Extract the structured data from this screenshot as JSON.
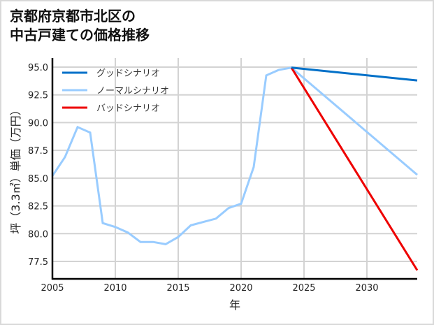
{
  "title": "京都府京都市北区の\n中古戸建ての価格推移",
  "chart_data": {
    "type": "line",
    "title": "京都府京都市北区の中古戸建ての価格推移",
    "xlabel": "年",
    "ylabel": "坪（3.3㎡）単価（万円）",
    "xlim": [
      2005,
      2034
    ],
    "ylim": [
      75.9,
      95.8
    ],
    "x_ticks": [
      2005,
      2010,
      2015,
      2020,
      2025,
      2030
    ],
    "x_tick_labels": [
      "2005",
      "2010",
      "2015",
      "2020",
      "2025",
      "2030"
    ],
    "y_ticks": [
      77.5,
      80.0,
      82.5,
      85.0,
      87.5,
      90.0,
      92.5,
      95.0
    ],
    "y_tick_labels": [
      "77.5",
      "80.0",
      "82.5",
      "85.0",
      "87.5",
      "90.0",
      "92.5",
      "95.0"
    ],
    "grid": true,
    "legend_position": "upper left",
    "series": [
      {
        "name": "グッドシナリオ",
        "color": "#0070c8",
        "x": [
          2024,
          2034
        ],
        "values": [
          94.95,
          93.8
        ]
      },
      {
        "name": "ノーマルシナリオ",
        "color": "#99ccff",
        "x": [
          2005,
          2006,
          2007,
          2008,
          2009,
          2010,
          2011,
          2012,
          2013,
          2014,
          2015,
          2016,
          2017,
          2018,
          2019,
          2020,
          2021,
          2022,
          2023,
          2024,
          2034
        ],
        "values": [
          85.2,
          86.9,
          89.6,
          89.1,
          80.95,
          80.6,
          80.1,
          79.25,
          79.25,
          79.05,
          79.7,
          80.75,
          81.05,
          81.35,
          82.3,
          82.7,
          86.0,
          94.25,
          94.75,
          94.95,
          85.3
        ]
      },
      {
        "name": "バッドシナリオ",
        "color": "#ee0000",
        "x": [
          2024,
          2034
        ],
        "values": [
          94.95,
          76.7
        ]
      }
    ]
  }
}
